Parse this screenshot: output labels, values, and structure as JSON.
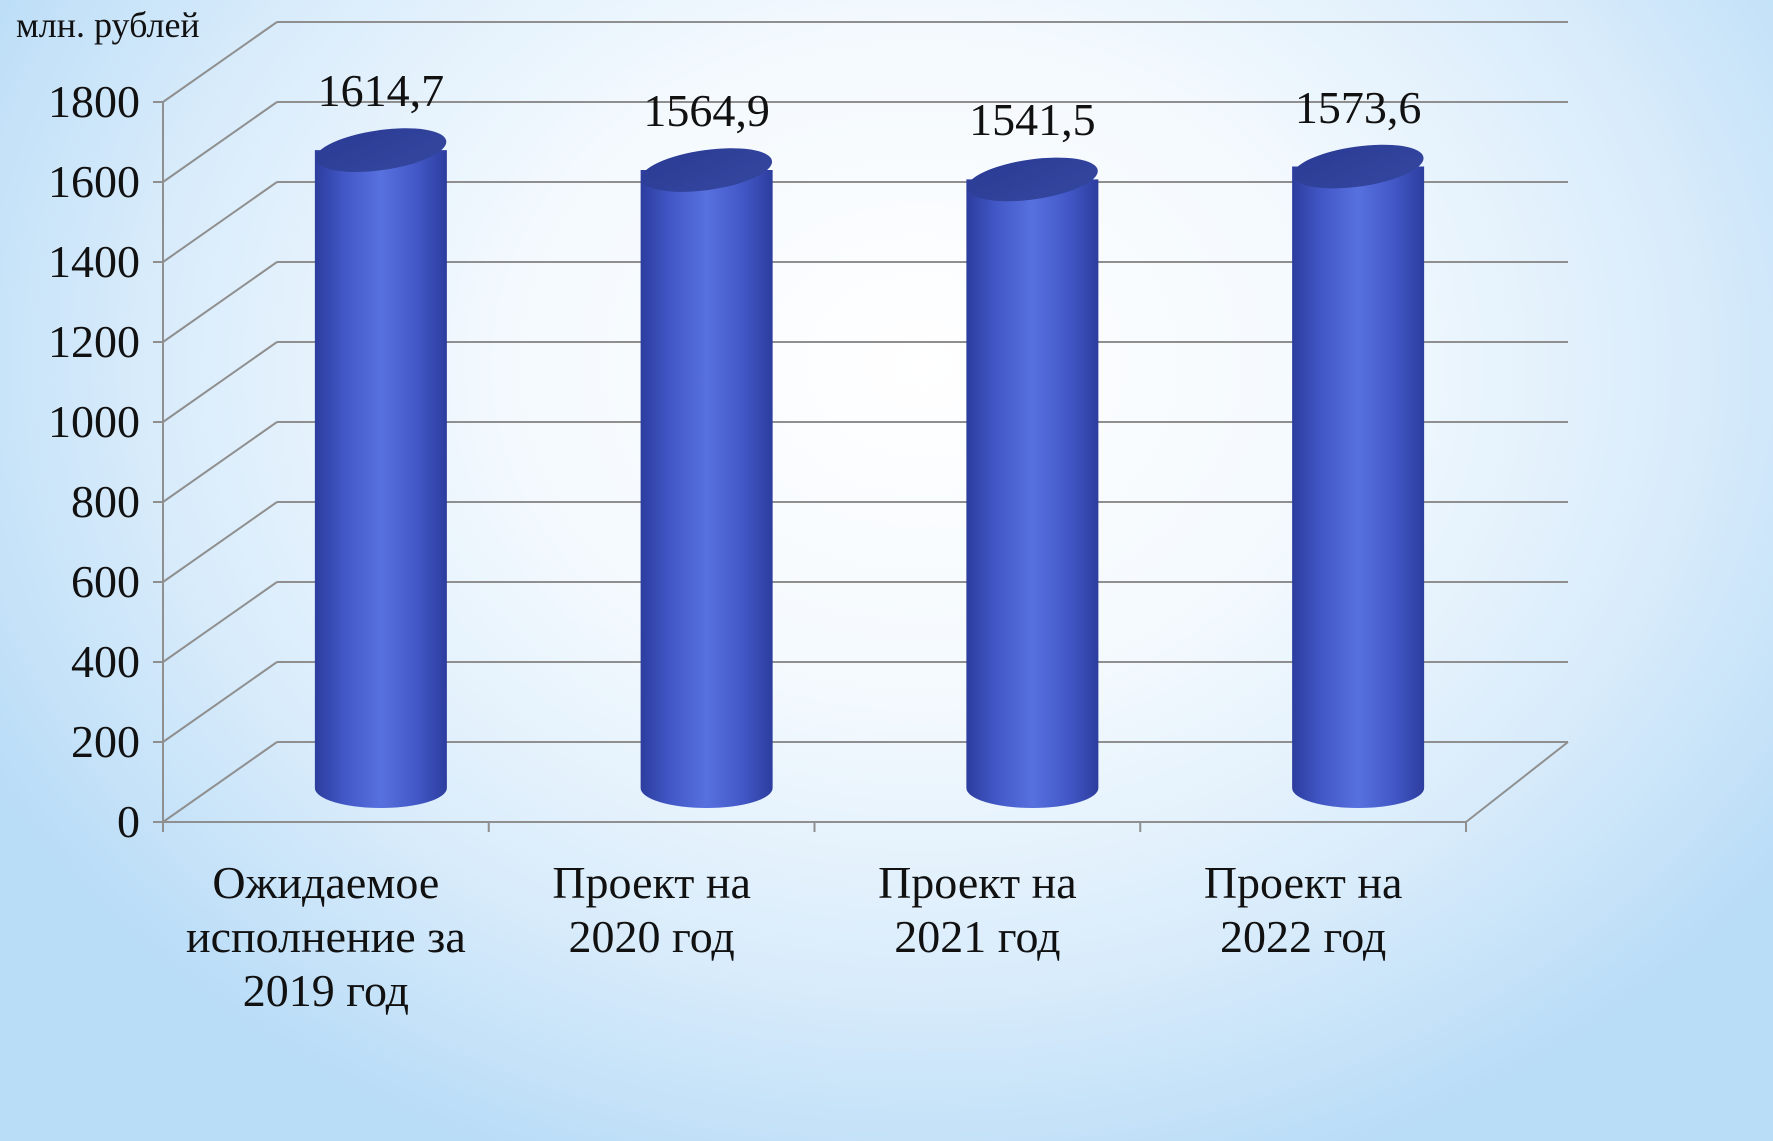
{
  "chart_data": {
    "type": "bar",
    "unit_label": "млн. рублей",
    "categories": [
      "Ожидаемое\nисполнение за\n2019 год",
      "Проект на\n2020 год",
      "Проект на\n2021 год",
      "Проект на\n2022 год"
    ],
    "values": [
      1614.7,
      1564.9,
      1541.5,
      1573.6
    ],
    "value_labels": [
      "1614,7",
      "1564,9",
      "1541,5",
      "1573,6"
    ],
    "yticks": [
      "0",
      "200",
      "400",
      "600",
      "800",
      "1000",
      "1200",
      "1400",
      "1600",
      "1800"
    ],
    "ylim": [
      0,
      1800
    ],
    "grid": true,
    "style": "3d-cylinder",
    "bar_color": "#4a63d0"
  }
}
